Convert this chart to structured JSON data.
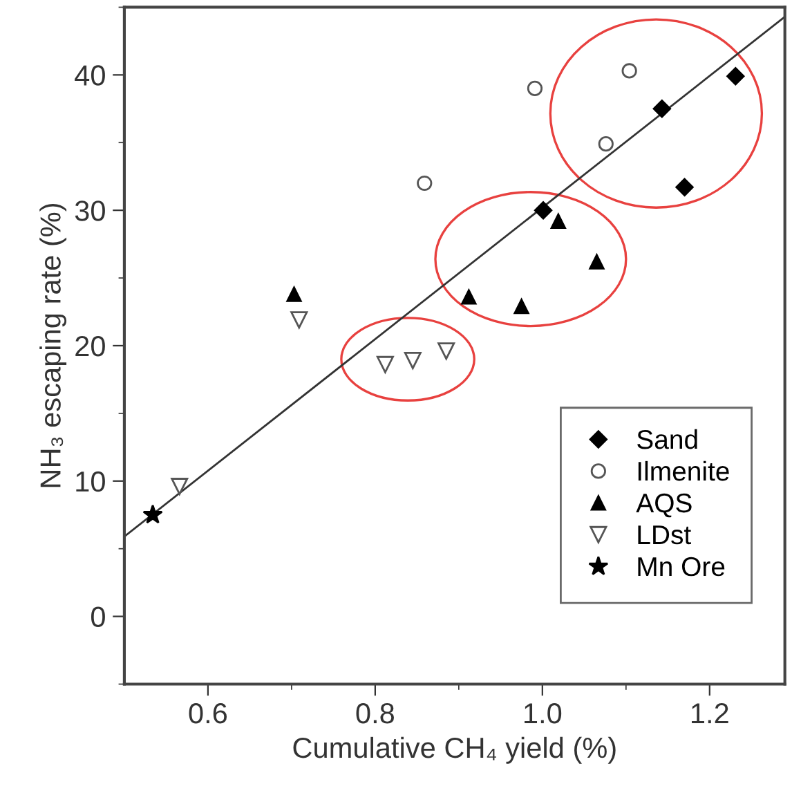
{
  "chart_data": {
    "type": "scatter",
    "xlabel": "Cumulative CH₄ yield (%)",
    "ylabel": "NH₃ escaping rate (%)",
    "xlim": [
      0.5,
      1.29
    ],
    "xticks": [
      0.6,
      0.8,
      {
        "value": 1,
        "label": "1.0"
      },
      1.2
    ],
    "ylim": [
      -5,
      45
    ],
    "yticks": [
      0,
      10,
      20,
      30,
      40
    ],
    "grid": false,
    "legend": "bottom right",
    "series": [
      {
        "name": "Sand",
        "color": "#000000",
        "marker": "diamond",
        "x": [
          1.231,
          1.143,
          1.17,
          1.001
        ],
        "values": [
          39.9,
          37.5,
          31.7,
          30.0
        ]
      },
      {
        "name": "Ilmenite",
        "color": "#555555",
        "marker": "circle",
        "x": [
          0.859,
          0.991,
          1.104,
          1.076
        ],
        "values": [
          32.0,
          39.0,
          40.3,
          34.9
        ]
      },
      {
        "name": "AQS",
        "color": "#000000",
        "marker": "triangle",
        "x": [
          0.703,
          1.019,
          1.065,
          0.912,
          0.975
        ],
        "values": [
          23.8,
          29.2,
          26.2,
          23.6,
          22.9
        ]
      },
      {
        "name": "LDst",
        "color": "#555555",
        "marker": "triangle_down",
        "x": [
          0.709,
          0.812,
          0.845,
          0.885,
          0.566
        ],
        "values": [
          21.9,
          18.6,
          18.9,
          19.6,
          9.6
        ]
      },
      {
        "name": "Mn Ore",
        "color": "#000000",
        "marker": "star",
        "x": [
          0.534
        ],
        "values": [
          7.5
        ]
      },
      {
        "type": "line",
        "color": "#333333",
        "marker": "none",
        "line_style": "solid",
        "x": [
          0.5,
          1.29
        ],
        "values": [
          5.9,
          44.3
        ]
      }
    ]
  }
}
